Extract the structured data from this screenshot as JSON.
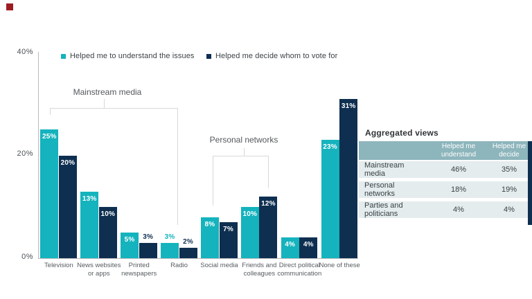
{
  "logo": {
    "color": "#9d1c23"
  },
  "colors": {
    "teal": "#14b3bd",
    "navy": "#0e2f50",
    "table_header_bg": "#8db5bc",
    "table_row_bg": "#e4ecee",
    "axis_line": "#b6b9bb",
    "bracket_line": "#d8d8d8"
  },
  "chart_data": {
    "type": "bar",
    "title": "",
    "xlabel": "",
    "ylabel": "",
    "ylim": [
      0,
      40
    ],
    "yticks": [
      "40%",
      "20%",
      "0%"
    ],
    "grid": false,
    "legend_position": "top",
    "categories": [
      {
        "label": "Television",
        "lines": [
          "Television"
        ]
      },
      {
        "label": "News websites or apps",
        "lines": [
          "News websites",
          "or apps"
        ]
      },
      {
        "label": "Printed newspapers",
        "lines": [
          "Printed",
          "newspapers"
        ]
      },
      {
        "label": "Radio",
        "lines": [
          "Radio"
        ]
      },
      {
        "label": "Social media",
        "lines": [
          "Social media"
        ]
      },
      {
        "label": "Friends and colleagues",
        "lines": [
          "Friends and",
          "colleagues"
        ]
      },
      {
        "label": "Direct political communication",
        "lines": [
          "Direct political",
          "communication"
        ]
      },
      {
        "label": "None of these",
        "lines": [
          "None of these"
        ]
      }
    ],
    "series": [
      {
        "name": "Helped me to understand the issues",
        "color": "#14b3bd",
        "values": [
          25,
          13,
          5,
          3,
          8,
          10,
          4,
          23
        ]
      },
      {
        "name": "Helped me decide whom to vote for",
        "color": "#0e2f50",
        "values": [
          20,
          10,
          3,
          2,
          7,
          12,
          4,
          31
        ]
      }
    ],
    "value_label_format": "{v}%",
    "annotations": {
      "mainstream": "Mainstream media",
      "personal": "Personal networks"
    }
  },
  "table": {
    "title": "Aggregated views",
    "columns": [
      "Helped me\nunderstand",
      "Helped me\ndecide"
    ],
    "rows": [
      {
        "label": "Mainstream media",
        "understand": "46%",
        "decide": "35%"
      },
      {
        "label": "Personal networks",
        "understand": "18%",
        "decide": "19%"
      },
      {
        "label": "Parties and politicians",
        "understand": "4%",
        "decide": "4%"
      }
    ]
  }
}
